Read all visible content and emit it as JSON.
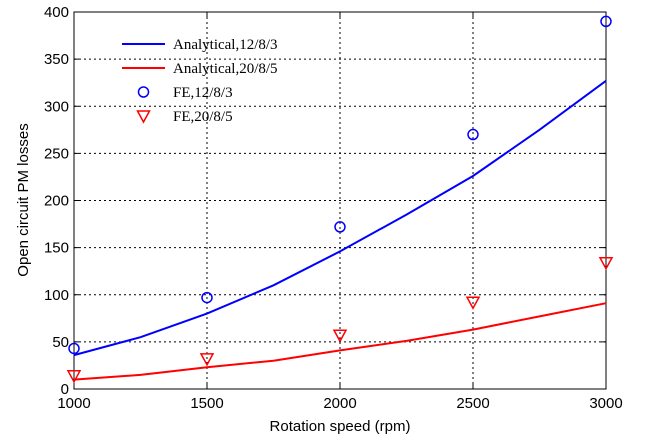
{
  "chart_data": {
    "type": "line",
    "title": "",
    "xlabel": "Rotation speed (rpm)",
    "ylabel": "Open circuit PM losses",
    "xlim": [
      1000,
      3000
    ],
    "ylim": [
      0,
      400
    ],
    "xticks": [
      1000,
      1500,
      2000,
      2500,
      3000
    ],
    "yticks": [
      0,
      50,
      100,
      150,
      200,
      250,
      300,
      350,
      400
    ],
    "grid": true,
    "legend_position": "top-left",
    "series": [
      {
        "name": "Analytical,12/8/3",
        "style": "line",
        "color": "#0000ff",
        "x": [
          1000,
          1250,
          1500,
          1750,
          2000,
          2250,
          2500,
          2750,
          3000
        ],
        "y": [
          36,
          55,
          80,
          110,
          146,
          185,
          226,
          275,
          327
        ]
      },
      {
        "name": "Analytical,20/8/5",
        "style": "line",
        "color": "#ff0000",
        "x": [
          1000,
          1250,
          1500,
          1750,
          2000,
          2250,
          2500,
          2750,
          3000
        ],
        "y": [
          10,
          15,
          23,
          30,
          41,
          51,
          63,
          77,
          91
        ]
      },
      {
        "name": "FE,12/8/3",
        "style": "circle-marker",
        "color": "#0000ff",
        "x": [
          1000,
          1500,
          2000,
          2500,
          3000
        ],
        "y": [
          43,
          97,
          172,
          270,
          390
        ]
      },
      {
        "name": "FE,20/8/5",
        "style": "triangle-down-marker",
        "color": "#ff0000",
        "x": [
          1000,
          1500,
          2000,
          2500,
          3000
        ],
        "y": [
          14,
          32,
          57,
          92,
          134
        ]
      }
    ]
  }
}
